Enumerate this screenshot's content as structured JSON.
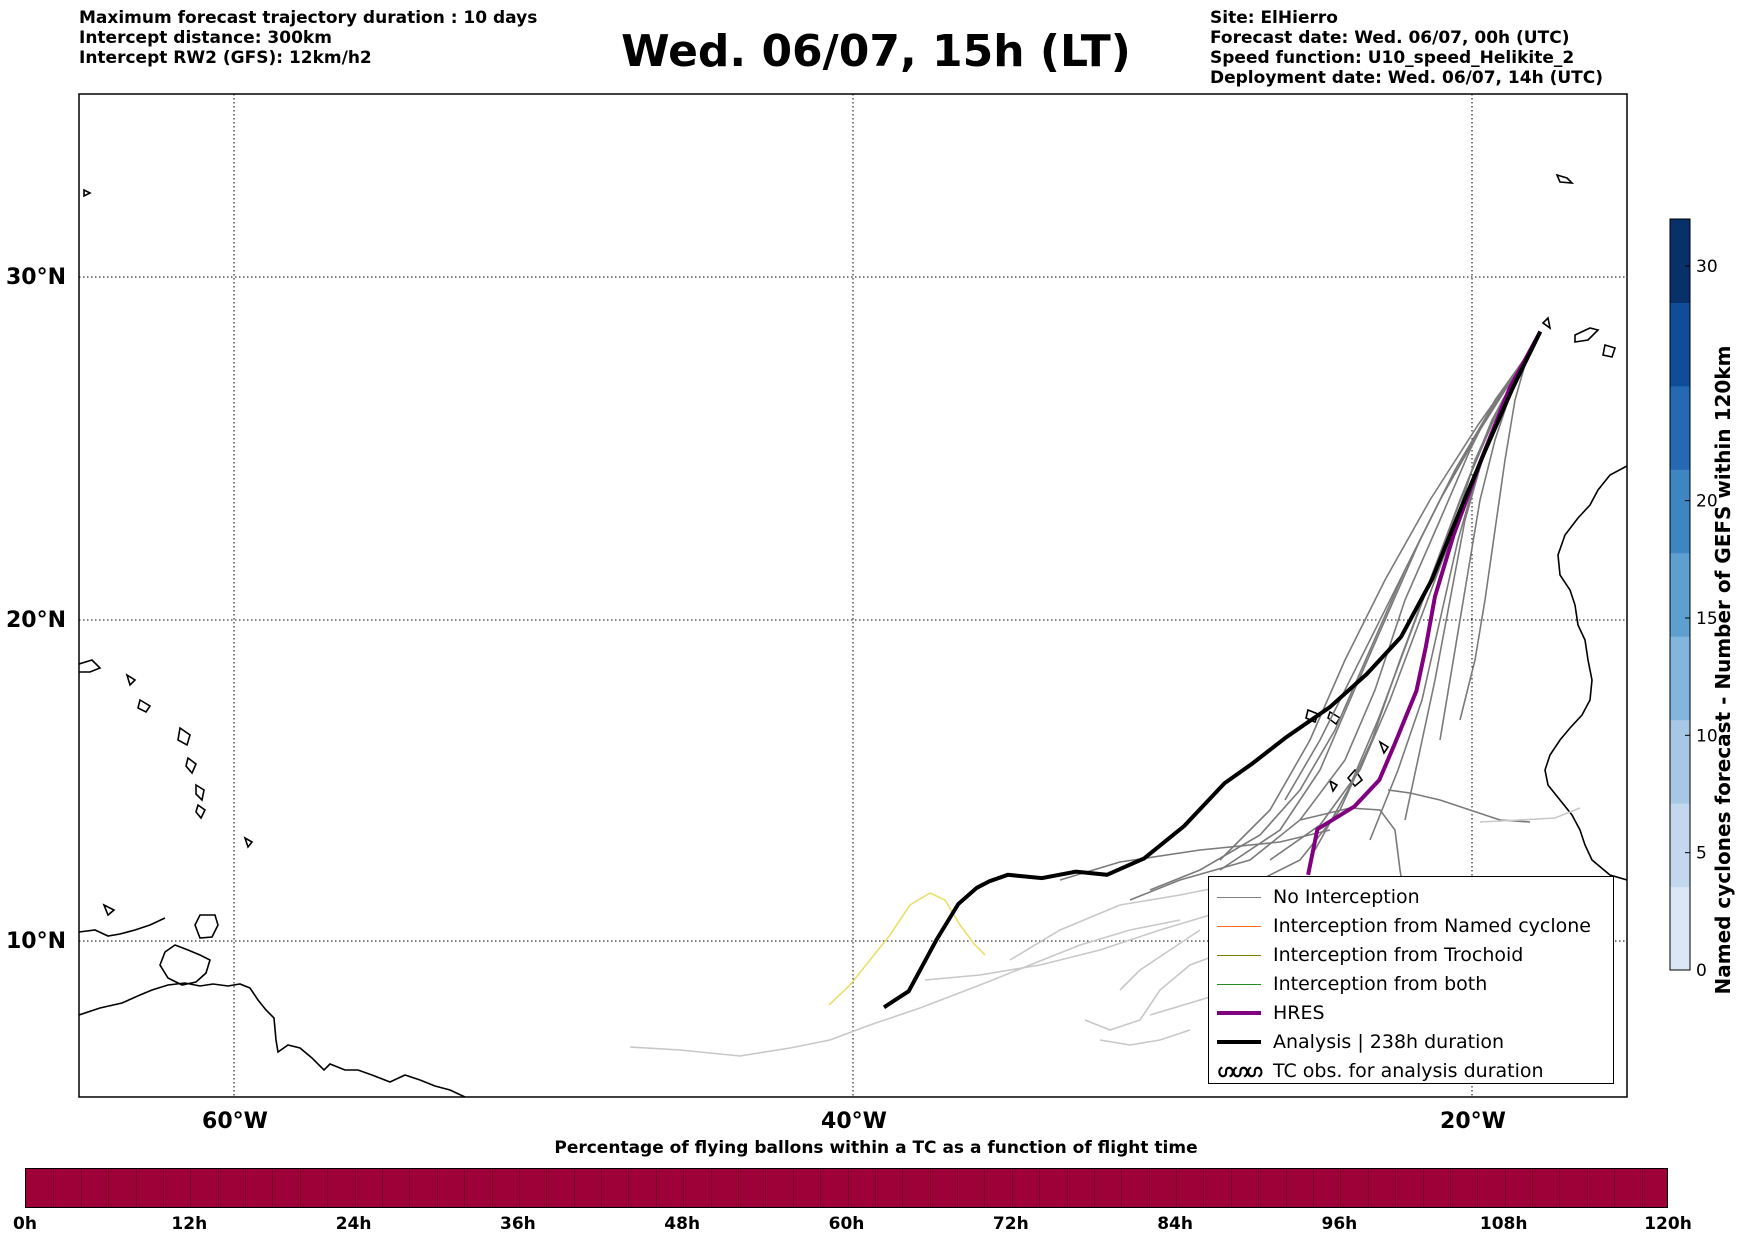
{
  "header": {
    "left_lines": [
      "Maximum forecast trajectory duration : 10 days",
      "Intercept distance: 300km",
      "Intercept RW2 (GFS):  12km/h2"
    ],
    "title": "Wed. 06/07, 15h (LT)",
    "right_lines": [
      "Site: ElHierro",
      "Forecast date: Wed. 06/07, 00h (UTC)",
      "Speed function: U10_speed_Helikite_2",
      "Deployment date: Wed. 06/07, 14h (UTC)"
    ]
  },
  "map": {
    "lat_labels": [
      "30°N",
      "20°N",
      "10°N"
    ],
    "lon_labels": [
      "60°W",
      "40°W",
      "20°W"
    ],
    "gridlines": true
  },
  "legend": {
    "items": [
      {
        "label": "No Interception",
        "color": "#808080"
      },
      {
        "label": "Interception from Named cyclone",
        "color": "#ff6a1a"
      },
      {
        "label": "Interception from Trochoid",
        "color": "#808000"
      },
      {
        "label": "Interception from both",
        "color": "#228b22"
      },
      {
        "label": "HRES",
        "color": "#800080"
      },
      {
        "label": "Analysis | 238h duration",
        "color": "#000000"
      },
      {
        "label": "TC obs. for analysis duration",
        "icon": "tc-symbol-icon",
        "symbol": "ഗഗഗ"
      }
    ]
  },
  "cyclone_colorbar": {
    "label": "Named cyclones forecast - Number of GEFS within 120km",
    "ticks": [
      "0",
      "5",
      "10",
      "15",
      "20",
      "30"
    ],
    "colors": [
      "#dbe7f5",
      "#c3d8ee",
      "#a6c8e4",
      "#83b6dc",
      "#5da0d0",
      "#3e86c3",
      "#2469b2",
      "#0f4d98",
      "#08306b"
    ]
  },
  "time_colorbar": {
    "title": "Percentage of flying ballons within a TC as a function of flight time",
    "color": "#9e0038",
    "ticks": [
      "0h",
      "12h",
      "24h",
      "36h",
      "48h",
      "60h",
      "72h",
      "84h",
      "96h",
      "108h",
      "120h"
    ]
  },
  "chart_data": {
    "type": "line",
    "title": "Wed. 06/07, 15h (LT)",
    "xlabel": "",
    "ylabel": "",
    "xlim": [
      -65,
      -15
    ],
    "ylim": [
      4.7,
      34
    ],
    "grid": true,
    "legend_position": "bottom-right",
    "series": [
      {
        "name": "HRES",
        "x": [
          -17.8,
          -18.8,
          -19.7,
          -20.6,
          -21.2,
          -21.5,
          -21.8,
          -22.5,
          -23.0,
          -23.8,
          -25.0,
          -25.3
        ],
        "y": [
          27.6,
          26.0,
          24.0,
          21.8,
          20.0,
          18.5,
          17.2,
          15.6,
          14.5,
          13.7,
          13.0,
          11.6
        ]
      },
      {
        "name": "Analysis | 238h duration",
        "x": [
          -17.8,
          -18.7,
          -19.6,
          -20.4,
          -21.3,
          -22.3,
          -23.4,
          -24.6,
          -26.0,
          -27.1,
          -28.0,
          -29.3,
          -30.6,
          -31.8,
          -32.8,
          -33.9,
          -35.0,
          -35.6,
          -36.0,
          -36.6,
          -37.3,
          -38.2,
          -39.0
        ],
        "y": [
          27.6,
          26.0,
          24.2,
          22.5,
          20.5,
          18.8,
          17.7,
          16.7,
          15.8,
          15.0,
          14.4,
          13.1,
          12.1,
          11.6,
          11.7,
          11.5,
          11.6,
          11.4,
          11.2,
          10.7,
          9.6,
          8.0,
          7.5
        ]
      }
    ]
  }
}
